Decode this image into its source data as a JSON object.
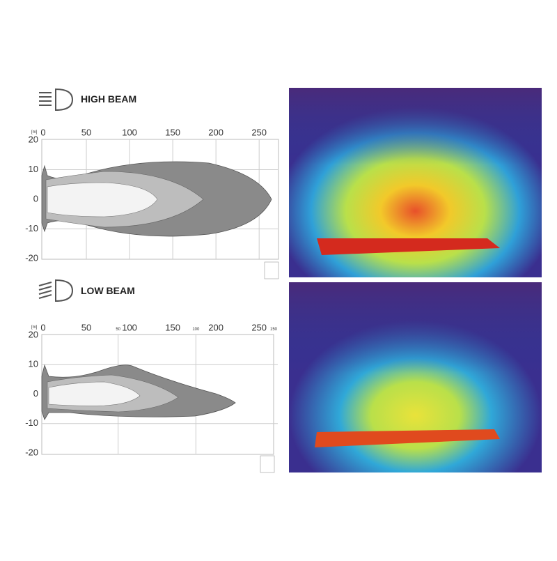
{
  "panels": [
    {
      "title": "HIGH BEAM",
      "unit": "[m]",
      "xlim": [
        0,
        270
      ],
      "ylim": [
        -20,
        20
      ],
      "xticks": [
        0,
        50,
        100,
        150,
        200,
        250
      ],
      "yticks": [
        20,
        10,
        0,
        -10,
        -20
      ]
    },
    {
      "title": "LOW BEAM",
      "unit": "[m]",
      "xlim": [
        0,
        270
      ],
      "ylim": [
        -20,
        20
      ],
      "xticks": [
        0,
        50,
        100,
        150,
        200,
        250
      ],
      "yticks": [
        20,
        10,
        0,
        -10,
        -20
      ],
      "x2lim": [
        0,
        150
      ],
      "x2ticks": [
        50,
        100,
        150
      ]
    }
  ]
}
